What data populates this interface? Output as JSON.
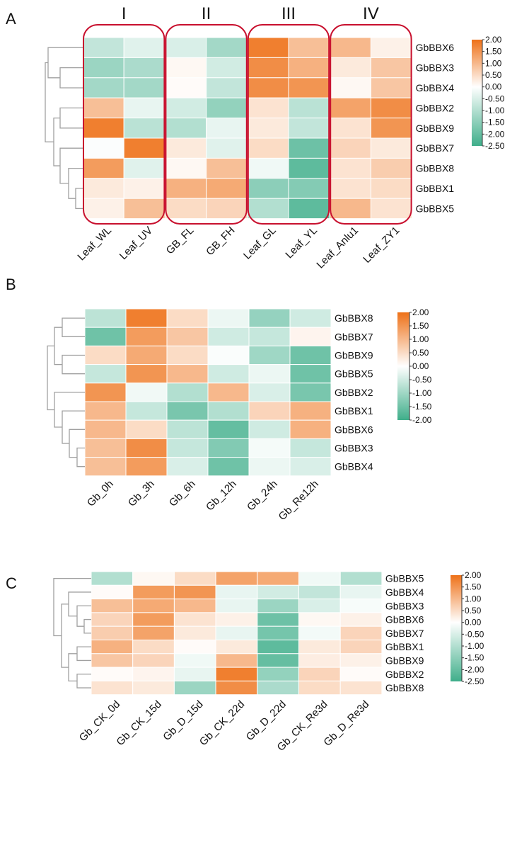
{
  "colors": {
    "high": "#EE7118",
    "mid": "#FFFFFF",
    "low": "#3FAE8A",
    "group_box": "#C8102E",
    "dendrogram": "#A0A0A0"
  },
  "chart_data": [
    {
      "type": "heatmap",
      "panel": "A",
      "groups": [
        {
          "label": "I",
          "columns": [
            0,
            1
          ]
        },
        {
          "label": "II",
          "columns": [
            2,
            3
          ]
        },
        {
          "label": "III",
          "columns": [
            4,
            5
          ]
        },
        {
          "label": "IV",
          "columns": [
            6,
            7
          ]
        }
      ],
      "columns": [
        "Leaf_WL",
        "Leaf_UV",
        "GB_FL",
        "GB_FH",
        "Leaf_GL",
        "Leaf_YL",
        "Leaf_Anlu1",
        "Leaf_ZY1"
      ],
      "rows": [
        "GbBBX6",
        "GbBBX3",
        "GbBBX4",
        "GbBBX2",
        "GbBBX9",
        "GbBBX7",
        "GbBBX8",
        "GbBBX1",
        "GbBBX5"
      ],
      "values": [
        [
          -0.8,
          -0.4,
          -0.5,
          -1.2,
          1.8,
          0.9,
          1.0,
          0.2
        ],
        [
          -1.3,
          -1.1,
          0.1,
          -0.6,
          1.6,
          1.1,
          0.3,
          0.8
        ],
        [
          -1.2,
          -1.2,
          0.05,
          -0.8,
          1.6,
          1.5,
          0.1,
          0.8
        ],
        [
          0.9,
          -0.3,
          -0.6,
          -1.4,
          0.4,
          -0.9,
          1.3,
          1.6
        ],
        [
          1.8,
          -0.9,
          -1.0,
          -0.3,
          0.3,
          -0.8,
          0.4,
          1.5
        ],
        [
          -0.05,
          1.8,
          0.3,
          -0.4,
          0.5,
          -1.9,
          0.6,
          0.3
        ],
        [
          1.4,
          -0.4,
          0.1,
          0.9,
          -0.2,
          -2.1,
          0.4,
          0.7
        ],
        [
          0.3,
          0.2,
          1.1,
          1.2,
          -1.5,
          -1.6,
          0.4,
          0.5
        ],
        [
          0.2,
          0.9,
          0.5,
          0.6,
          -1.0,
          -2.1,
          1.0,
          0.4
        ]
      ],
      "colorbar": {
        "range": [
          -2.5,
          2.0
        ],
        "ticks": [
          "2.00",
          "1.50",
          "1.00",
          "0.50",
          "0.00",
          "-0.50",
          "-1.00",
          "-1.50",
          "-2.00",
          "-2.50"
        ]
      }
    },
    {
      "type": "heatmap",
      "panel": "B",
      "columns": [
        "Gb_0h",
        "Gb_3h",
        "Gb_6h",
        "Gb_12h",
        "Gb_24h",
        "Gb_Re12h"
      ],
      "rows": [
        "GbBBX8",
        "GbBBX7",
        "GbBBX9",
        "GbBBX5",
        "GbBBX2",
        "GbBBX1",
        "GbBBX6",
        "GbBBX3",
        "GbBBX4"
      ],
      "values": [
        [
          -0.7,
          1.8,
          0.5,
          -0.2,
          -1.1,
          -0.5
        ],
        [
          -1.5,
          1.4,
          0.8,
          -0.5,
          -0.6,
          0.15
        ],
        [
          0.5,
          1.2,
          0.5,
          -0.05,
          -1.0,
          -1.5
        ],
        [
          -0.6,
          1.5,
          1.0,
          -0.5,
          -0.2,
          -1.5
        ],
        [
          1.5,
          -0.15,
          -0.8,
          1.0,
          -0.4,
          -1.4
        ],
        [
          1.0,
          -0.6,
          -1.4,
          -0.8,
          0.6,
          1.1
        ],
        [
          1.0,
          0.5,
          -0.7,
          -1.6,
          -0.5,
          1.1
        ],
        [
          0.9,
          1.6,
          -0.6,
          -1.3,
          -0.1,
          -0.6
        ],
        [
          0.9,
          1.4,
          -0.4,
          -1.5,
          -0.2,
          -0.4
        ]
      ],
      "colorbar": {
        "range": [
          -2.0,
          2.0
        ],
        "ticks": [
          "2.00",
          "1.50",
          "1.00",
          "0.50",
          "0.00",
          "-0.50",
          "-1.00",
          "-1.50",
          "-2.00"
        ]
      }
    },
    {
      "type": "heatmap",
      "panel": "C",
      "columns": [
        "Gb_CK_0d",
        "Gb_CK_15d",
        "Gb_D_15d",
        "Gb_CK_22d",
        "Gb_D_22d",
        "Gb_CK_Re3d",
        "Gb_D_Re3d"
      ],
      "rows": [
        "GbBBX5",
        "GbBBX4",
        "GbBBX3",
        "GbBBX6",
        "GbBBX7",
        "GbBBX1",
        "GbBBX9",
        "GbBBX2",
        "GbBBX8"
      ],
      "values": [
        [
          -1.0,
          0.1,
          0.5,
          1.3,
          1.2,
          -0.2,
          -1.0
        ],
        [
          0.05,
          1.4,
          1.5,
          -0.3,
          -0.6,
          -0.8,
          -0.3
        ],
        [
          0.9,
          1.2,
          1.0,
          -0.3,
          -1.3,
          -0.5,
          -0.1
        ],
        [
          0.6,
          1.4,
          0.4,
          0.2,
          -1.9,
          0.1,
          0.2
        ],
        [
          0.7,
          1.3,
          0.3,
          -0.3,
          -1.8,
          -0.15,
          0.6
        ],
        [
          1.1,
          0.5,
          0.05,
          0.3,
          -2.1,
          0.3,
          0.6
        ],
        [
          0.8,
          0.6,
          -0.2,
          1.0,
          -2.0,
          0.25,
          0.2
        ],
        [
          0.05,
          0.15,
          -0.3,
          1.8,
          -1.4,
          0.6,
          0.05
        ],
        [
          0.4,
          0.3,
          -1.3,
          1.6,
          -1.1,
          0.5,
          0.4
        ]
      ],
      "colorbar": {
        "range": [
          -2.5,
          2.0
        ],
        "ticks": [
          "2.00",
          "1.50",
          "1.00",
          "0.50",
          "0.00",
          "-0.50",
          "-1.00",
          "-1.50",
          "-2.00",
          "-2.50"
        ]
      }
    }
  ]
}
